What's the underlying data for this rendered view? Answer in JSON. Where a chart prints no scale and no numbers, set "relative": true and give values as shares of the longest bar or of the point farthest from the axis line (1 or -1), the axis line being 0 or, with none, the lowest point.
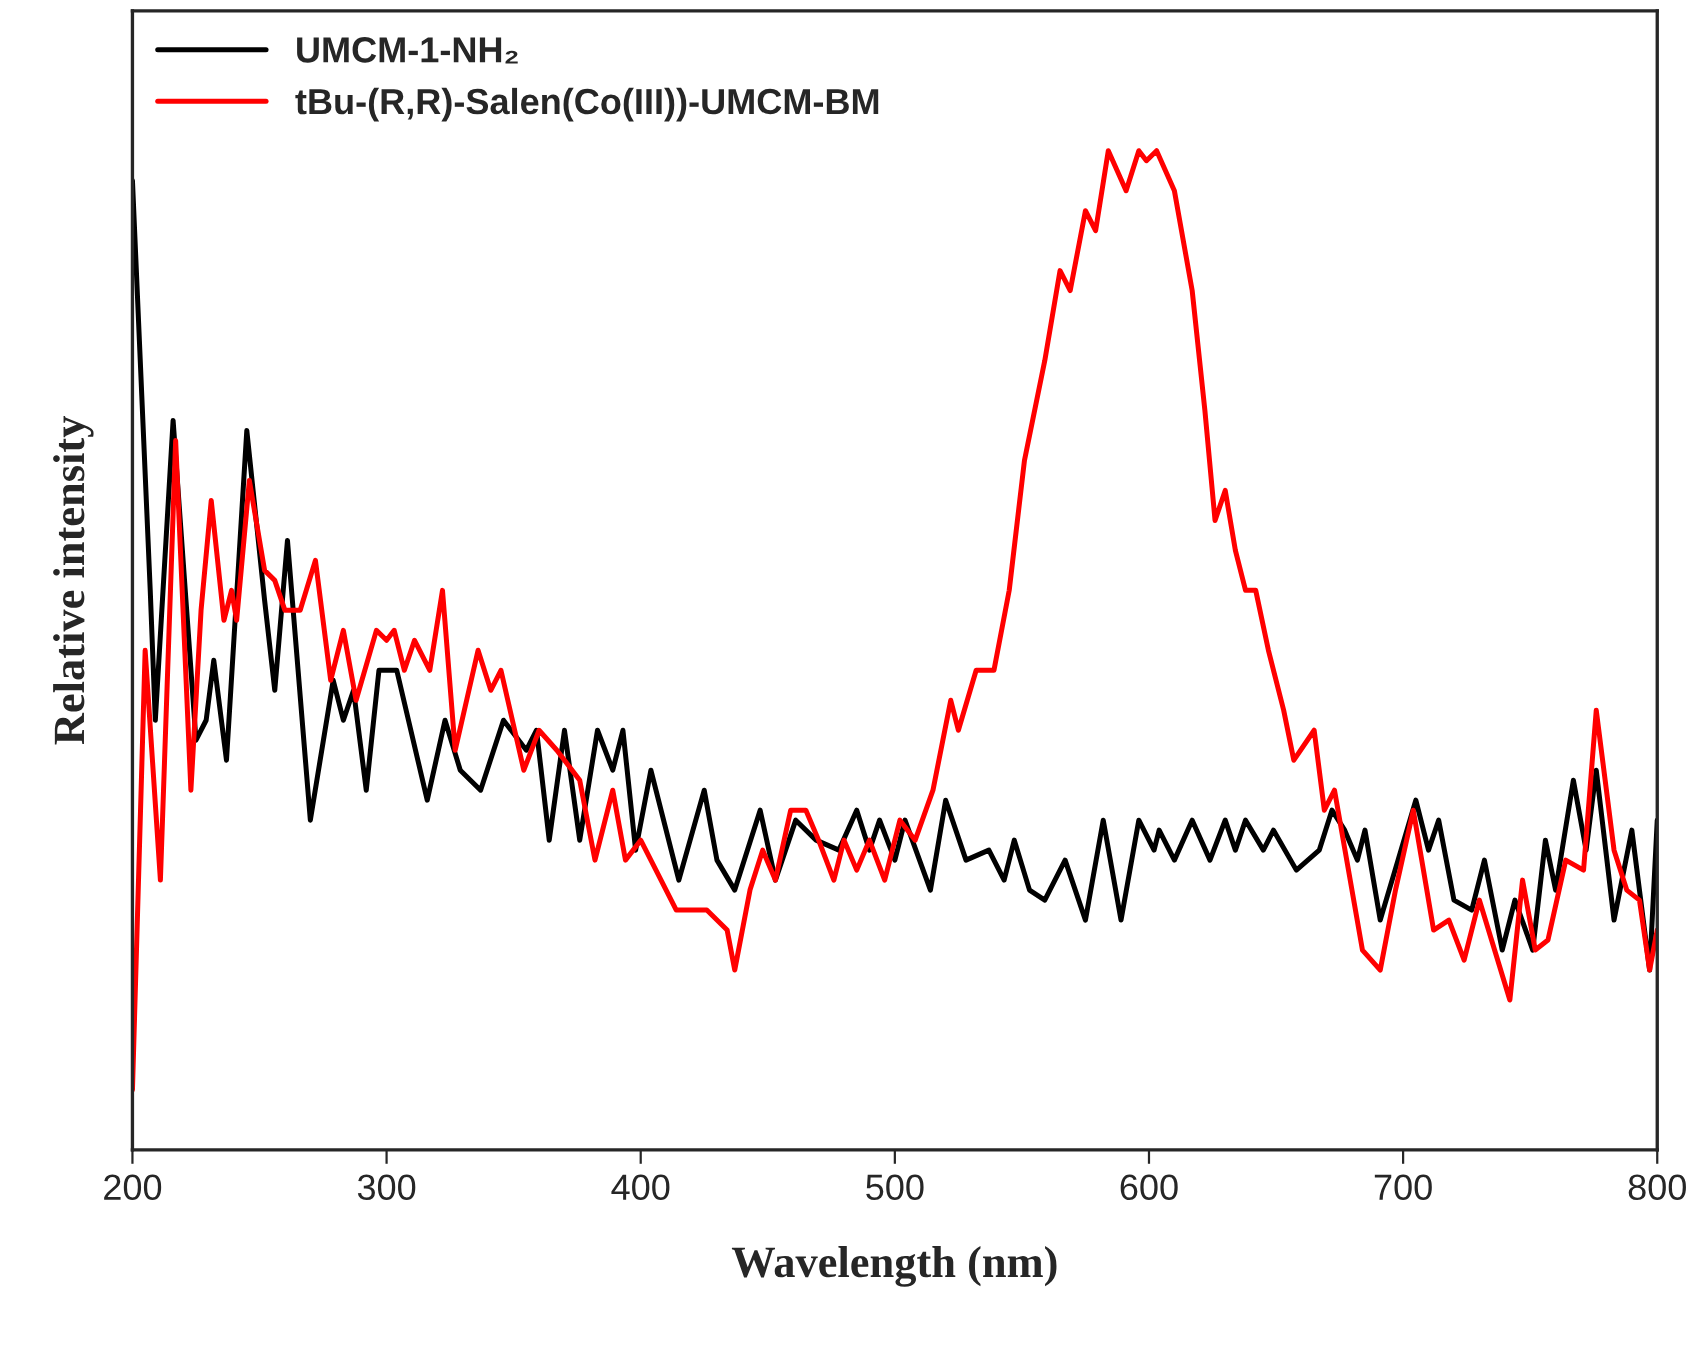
{
  "chart_data": {
    "type": "line",
    "relative": true,
    "xlabel": "Wavelength (nm)",
    "ylabel": "Relative intensity",
    "xlim": [
      200,
      800
    ],
    "xticks": [
      200,
      300,
      400,
      500,
      600,
      700,
      800
    ],
    "legend": "top left",
    "grid": false,
    "series": [
      {
        "name": "UMCM-1-NH₂",
        "color": "#000000",
        "x": [
          200,
          207,
          209,
          216,
          225,
          229,
          232,
          237,
          245,
          252,
          256,
          261,
          270,
          279,
          283,
          287,
          292,
          297,
          304,
          316,
          323,
          329,
          337,
          346,
          355,
          359,
          364,
          370,
          376,
          383,
          389,
          393,
          398,
          404,
          415,
          425,
          430,
          437,
          447,
          453,
          461,
          469,
          478,
          485,
          490,
          494,
          500,
          504,
          514,
          520,
          528,
          537,
          543,
          547,
          553,
          559,
          567,
          575,
          582,
          589,
          596,
          602,
          604,
          610,
          617,
          624,
          630,
          634,
          638,
          645,
          649,
          658,
          667,
          672,
          677,
          682,
          685,
          691,
          698,
          705,
          710,
          714,
          720,
          727,
          732,
          739,
          744,
          751,
          756,
          760,
          767,
          772,
          776,
          783,
          790,
          797,
          800
        ],
        "values": [
          0.97,
          0.56,
          0.43,
          0.73,
          0.41,
          0.43,
          0.49,
          0.39,
          0.72,
          0.55,
          0.46,
          0.61,
          0.33,
          0.47,
          0.43,
          0.46,
          0.36,
          0.48,
          0.48,
          0.35,
          0.43,
          0.38,
          0.36,
          0.43,
          0.4,
          0.42,
          0.31,
          0.42,
          0.31,
          0.42,
          0.38,
          0.42,
          0.3,
          0.38,
          0.27,
          0.36,
          0.29,
          0.26,
          0.34,
          0.27,
          0.33,
          0.31,
          0.3,
          0.34,
          0.3,
          0.33,
          0.29,
          0.33,
          0.26,
          0.35,
          0.29,
          0.3,
          0.27,
          0.31,
          0.26,
          0.25,
          0.29,
          0.23,
          0.33,
          0.23,
          0.33,
          0.3,
          0.32,
          0.29,
          0.33,
          0.29,
          0.33,
          0.3,
          0.33,
          0.3,
          0.32,
          0.28,
          0.3,
          0.34,
          0.32,
          0.29,
          0.32,
          0.23,
          0.29,
          0.35,
          0.3,
          0.33,
          0.25,
          0.24,
          0.29,
          0.2,
          0.25,
          0.2,
          0.31,
          0.26,
          0.37,
          0.3,
          0.38,
          0.23,
          0.32,
          0.18,
          0.33
        ]
      },
      {
        "name": "tBu-(R,R)-Salen(Co(III))-UMCM-BM",
        "color": "#ff0000",
        "x": [
          200,
          205,
          211,
          217,
          223,
          227,
          231,
          236,
          239,
          241,
          246,
          252,
          256,
          260,
          266,
          272,
          278,
          283,
          288,
          296,
          300,
          303,
          307,
          311,
          317,
          322,
          327,
          336,
          341,
          345,
          354,
          360,
          367,
          376,
          382,
          389,
          394,
          400,
          414,
          426,
          434,
          437,
          443,
          448,
          453,
          459,
          465,
          470,
          476,
          480,
          485,
          490,
          496,
          502,
          508,
          515,
          522,
          525,
          532,
          539,
          545,
          551,
          559,
          565,
          569,
          575,
          579,
          584,
          591,
          596,
          599,
          603,
          610,
          617,
          622,
          626,
          630,
          634,
          638,
          642,
          647,
          653,
          657,
          665,
          669,
          673,
          684,
          691,
          697,
          704,
          712,
          718,
          724,
          730,
          742,
          747,
          752,
          757,
          764,
          771,
          776,
          783,
          788,
          793,
          797,
          800
        ],
        "values": [
          0.06,
          0.5,
          0.27,
          0.71,
          0.36,
          0.54,
          0.65,
          0.53,
          0.56,
          0.53,
          0.67,
          0.58,
          0.57,
          0.54,
          0.54,
          0.59,
          0.47,
          0.52,
          0.45,
          0.52,
          0.51,
          0.52,
          0.48,
          0.51,
          0.48,
          0.56,
          0.4,
          0.5,
          0.46,
          0.48,
          0.38,
          0.42,
          0.4,
          0.37,
          0.29,
          0.36,
          0.29,
          0.31,
          0.24,
          0.24,
          0.22,
          0.18,
          0.26,
          0.3,
          0.27,
          0.34,
          0.34,
          0.31,
          0.27,
          0.31,
          0.28,
          0.31,
          0.27,
          0.33,
          0.31,
          0.36,
          0.45,
          0.42,
          0.48,
          0.48,
          0.56,
          0.69,
          0.79,
          0.88,
          0.86,
          0.94,
          0.92,
          1.0,
          0.96,
          1.0,
          0.99,
          1.0,
          0.96,
          0.86,
          0.74,
          0.63,
          0.66,
          0.6,
          0.56,
          0.56,
          0.5,
          0.44,
          0.39,
          0.42,
          0.34,
          0.36,
          0.2,
          0.18,
          0.26,
          0.34,
          0.22,
          0.23,
          0.19,
          0.25,
          0.15,
          0.27,
          0.2,
          0.21,
          0.29,
          0.28,
          0.44,
          0.3,
          0.26,
          0.25,
          0.18,
          0.22
        ]
      }
    ]
  }
}
